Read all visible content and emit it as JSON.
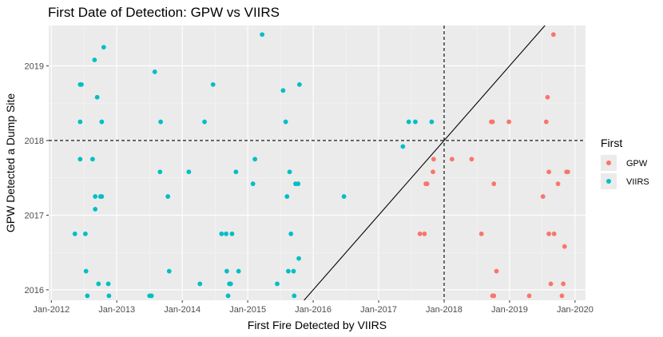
{
  "chart_data": {
    "type": "scatter",
    "title": "First Date of Detection: GPW vs VIIRS",
    "xlabel": "First Fire Detected by VIIRS",
    "ylabel": "GPW Detected a Dump Site",
    "x_ticks": [
      "Jan-2012",
      "Jan-2013",
      "Jan-2014",
      "Jan-2015",
      "Jan-2016",
      "Jan-2017",
      "Jan-2018",
      "Jan-2019",
      "Jan-2020"
    ],
    "y_ticks": [
      "2016",
      "2017",
      "2018",
      "2019"
    ],
    "xlim": [
      2011.96,
      2020.16
    ],
    "ylim": [
      2015.86,
      2019.54
    ],
    "reference_lines": {
      "vertical_x": 2018.0,
      "horizontal_y": 2018.0,
      "diagonal": "y = x"
    },
    "legend": {
      "title": "First",
      "position": "right",
      "entries": [
        "GPW",
        "VIIRS"
      ]
    },
    "colors": {
      "GPW": "#f8766d",
      "VIIRS": "#00bfc4",
      "panel": "#ebebeb",
      "grid": "#ffffff"
    },
    "series": [
      {
        "name": "VIIRS",
        "points": [
          [
            2012.36,
            2016.75
          ],
          [
            2012.44,
            2017.75
          ],
          [
            2012.44,
            2018.75
          ],
          [
            2012.46,
            2018.75
          ],
          [
            2012.44,
            2018.25
          ],
          [
            2012.52,
            2016.75
          ],
          [
            2012.53,
            2016.25
          ],
          [
            2012.55,
            2015.92
          ],
          [
            2012.63,
            2017.75
          ],
          [
            2012.66,
            2019.08
          ],
          [
            2012.67,
            2017.25
          ],
          [
            2012.67,
            2017.08
          ],
          [
            2012.7,
            2018.58
          ],
          [
            2012.72,
            2016.08
          ],
          [
            2012.75,
            2017.25
          ],
          [
            2012.77,
            2017.25
          ],
          [
            2012.77,
            2018.25
          ],
          [
            2012.8,
            2019.25
          ],
          [
            2012.87,
            2016.08
          ],
          [
            2012.88,
            2015.92
          ],
          [
            2013.5,
            2015.92
          ],
          [
            2013.53,
            2015.92
          ],
          [
            2013.58,
            2018.92
          ],
          [
            2013.66,
            2017.58
          ],
          [
            2013.67,
            2018.25
          ],
          [
            2013.78,
            2017.25
          ],
          [
            2013.8,
            2016.25
          ],
          [
            2014.1,
            2017.58
          ],
          [
            2014.27,
            2016.08
          ],
          [
            2014.34,
            2018.25
          ],
          [
            2014.47,
            2018.75
          ],
          [
            2014.6,
            2016.75
          ],
          [
            2014.67,
            2016.75
          ],
          [
            2014.68,
            2016.25
          ],
          [
            2014.7,
            2015.92
          ],
          [
            2014.72,
            2016.08
          ],
          [
            2014.74,
            2016.08
          ],
          [
            2014.76,
            2016.75
          ],
          [
            2014.82,
            2017.58
          ],
          [
            2014.86,
            2016.25
          ],
          [
            2015.08,
            2017.42
          ],
          [
            2015.11,
            2017.75
          ],
          [
            2015.22,
            2019.42
          ],
          [
            2015.45,
            2016.08
          ],
          [
            2015.54,
            2018.67
          ],
          [
            2015.58,
            2018.25
          ],
          [
            2015.6,
            2017.25
          ],
          [
            2015.62,
            2016.25
          ],
          [
            2015.64,
            2017.58
          ],
          [
            2015.66,
            2016.75
          ],
          [
            2015.7,
            2016.25
          ],
          [
            2015.71,
            2015.92
          ],
          [
            2015.73,
            2017.42
          ],
          [
            2015.77,
            2017.42
          ],
          [
            2015.78,
            2016.42
          ],
          [
            2015.79,
            2018.75
          ],
          [
            2016.47,
            2017.25
          ],
          [
            2017.37,
            2017.92
          ],
          [
            2017.46,
            2018.25
          ],
          [
            2017.56,
            2018.25
          ],
          [
            2017.81,
            2018.25
          ]
        ]
      },
      {
        "name": "GPW",
        "points": [
          [
            2017.63,
            2016.75
          ],
          [
            2017.7,
            2016.75
          ],
          [
            2017.72,
            2017.42
          ],
          [
            2017.74,
            2017.42
          ],
          [
            2017.83,
            2017.58
          ],
          [
            2017.84,
            2017.75
          ],
          [
            2018.12,
            2017.75
          ],
          [
            2018.42,
            2017.75
          ],
          [
            2018.57,
            2016.75
          ],
          [
            2018.72,
            2018.25
          ],
          [
            2018.74,
            2018.25
          ],
          [
            2018.74,
            2015.92
          ],
          [
            2018.76,
            2015.92
          ],
          [
            2018.76,
            2017.42
          ],
          [
            2018.8,
            2016.25
          ],
          [
            2018.99,
            2018.25
          ],
          [
            2019.3,
            2015.92
          ],
          [
            2019.51,
            2017.25
          ],
          [
            2019.56,
            2018.25
          ],
          [
            2019.58,
            2018.58
          ],
          [
            2019.6,
            2016.75
          ],
          [
            2019.6,
            2017.58
          ],
          [
            2019.63,
            2016.08
          ],
          [
            2019.67,
            2019.42
          ],
          [
            2019.68,
            2016.75
          ],
          [
            2019.74,
            2017.42
          ],
          [
            2019.8,
            2015.92
          ],
          [
            2019.82,
            2016.08
          ],
          [
            2019.84,
            2016.58
          ],
          [
            2019.87,
            2017.58
          ],
          [
            2019.89,
            2017.58
          ]
        ]
      }
    ]
  }
}
